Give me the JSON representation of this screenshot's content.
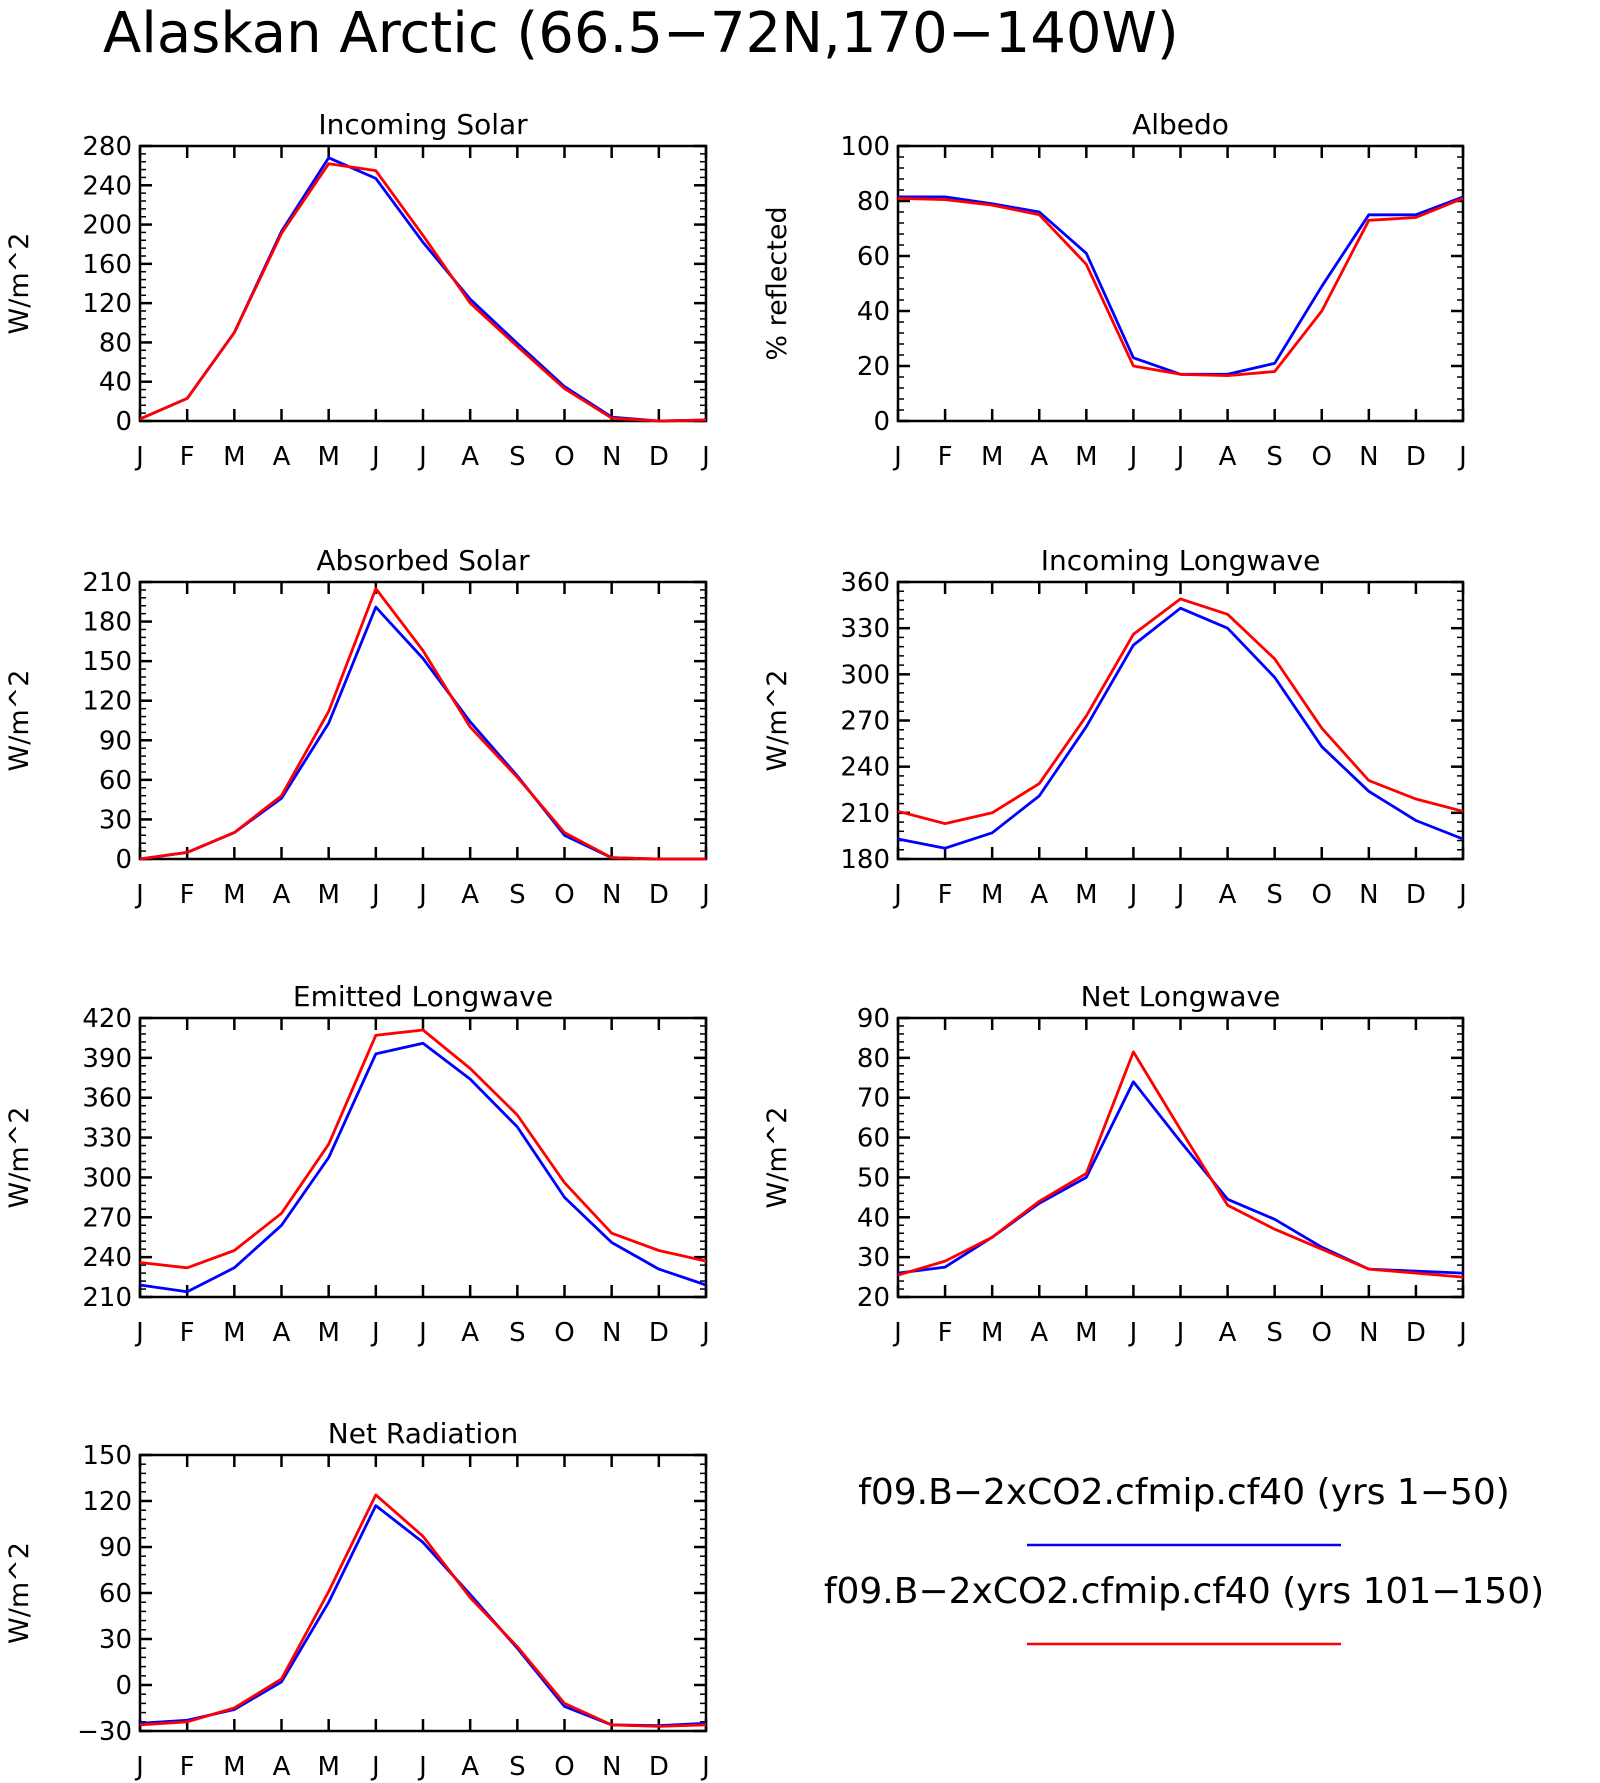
{
  "title": "Alaskan Arctic (66.5-72N,170-140W)",
  "legend": [
    {
      "label": "f09.B-2xCO2.cfmip.cf40 (yrs 1-50)",
      "color": "#0000ff"
    },
    {
      "label": "f09.B-2xCO2.cfmip.cf40 (yrs 101-150)",
      "color": "#ff0000"
    }
  ],
  "chart_data": [
    {
      "type": "line",
      "title": "Incoming Solar",
      "ylabel": "W/m^2",
      "ylim": [
        0,
        280
      ],
      "yticks": [
        0,
        40,
        80,
        120,
        160,
        200,
        240,
        280
      ],
      "categories": [
        "J",
        "F",
        "M",
        "A",
        "M",
        "J",
        "J",
        "A",
        "S",
        "O",
        "N",
        "D",
        "J"
      ],
      "series": [
        {
          "color": "#0000ff",
          "values": [
            2,
            23,
            90,
            193,
            268,
            247,
            182,
            124,
            79,
            35,
            4,
            0,
            1
          ]
        },
        {
          "color": "#ff0000",
          "values": [
            2,
            23,
            90,
            191,
            262,
            255,
            189,
            120,
            76,
            33,
            3,
            0,
            1
          ]
        }
      ]
    },
    {
      "type": "line",
      "title": "Albedo",
      "ylabel": "% reflected",
      "ylim": [
        0,
        100
      ],
      "yticks": [
        0,
        20,
        40,
        60,
        80,
        100
      ],
      "categories": [
        "J",
        "F",
        "M",
        "A",
        "M",
        "J",
        "J",
        "A",
        "S",
        "O",
        "N",
        "D",
        "J"
      ],
      "series": [
        {
          "color": "#0000ff",
          "values": [
            81.5,
            81.5,
            79,
            76,
            61,
            23,
            17,
            17,
            21,
            49,
            75,
            75,
            81.5
          ]
        },
        {
          "color": "#ff0000",
          "values": [
            81,
            80.5,
            78.5,
            75,
            57,
            20,
            17,
            16.5,
            18,
            40,
            73,
            74,
            81
          ]
        }
      ]
    },
    {
      "type": "line",
      "title": "Absorbed Solar",
      "ylabel": "W/m^2",
      "ylim": [
        0,
        210
      ],
      "yticks": [
        0,
        30,
        60,
        90,
        120,
        150,
        180,
        210
      ],
      "categories": [
        "J",
        "F",
        "M",
        "A",
        "M",
        "J",
        "J",
        "A",
        "S",
        "O",
        "N",
        "D",
        "J"
      ],
      "series": [
        {
          "color": "#0000ff",
          "values": [
            0,
            5,
            20,
            46,
            103,
            191,
            152,
            104,
            63,
            18,
            1,
            0,
            0
          ]
        },
        {
          "color": "#ff0000",
          "values": [
            0,
            5,
            20,
            48,
            112,
            205,
            158,
            100,
            62,
            20,
            1,
            0,
            0
          ]
        }
      ]
    },
    {
      "type": "line",
      "title": "Incoming Longwave",
      "ylabel": "W/m^2",
      "ylim": [
        180,
        360
      ],
      "yticks": [
        180,
        210,
        240,
        270,
        300,
        330,
        360
      ],
      "categories": [
        "J",
        "F",
        "M",
        "A",
        "M",
        "J",
        "J",
        "A",
        "S",
        "O",
        "N",
        "D",
        "J"
      ],
      "series": [
        {
          "color": "#0000ff",
          "values": [
            193,
            187,
            197,
            221,
            266,
            319,
            343,
            330,
            298,
            253,
            224,
            205,
            193
          ]
        },
        {
          "color": "#ff0000",
          "values": [
            211,
            203,
            210,
            229,
            273,
            326,
            349,
            339,
            310,
            265,
            231,
            219,
            211
          ]
        }
      ]
    },
    {
      "type": "line",
      "title": "Emitted Longwave",
      "ylabel": "W/m^2",
      "ylim": [
        210,
        420
      ],
      "yticks": [
        210,
        240,
        270,
        300,
        330,
        360,
        390,
        420
      ],
      "categories": [
        "J",
        "F",
        "M",
        "A",
        "M",
        "J",
        "J",
        "A",
        "S",
        "O",
        "N",
        "D",
        "J"
      ],
      "series": [
        {
          "color": "#0000ff",
          "values": [
            219,
            214,
            232,
            264,
            315,
            393,
            401,
            374,
            338,
            285,
            251,
            231,
            219
          ]
        },
        {
          "color": "#ff0000",
          "values": [
            236,
            232,
            245,
            273,
            325,
            407,
            411,
            382,
            347,
            296,
            258,
            245,
            237
          ]
        }
      ]
    },
    {
      "type": "line",
      "title": "Net Longwave",
      "ylabel": "W/m^2",
      "ylim": [
        20,
        90
      ],
      "yticks": [
        20,
        30,
        40,
        50,
        60,
        70,
        80,
        90
      ],
      "categories": [
        "J",
        "F",
        "M",
        "A",
        "M",
        "J",
        "J",
        "A",
        "S",
        "O",
        "N",
        "D",
        "J"
      ],
      "series": [
        {
          "color": "#0000ff",
          "values": [
            26,
            27.5,
            35,
            43.5,
            50,
            74,
            59,
            44.5,
            39.5,
            32.5,
            27,
            26.5,
            26
          ]
        },
        {
          "color": "#ff0000",
          "values": [
            25.5,
            29,
            35,
            44,
            51,
            81.5,
            62,
            43,
            37,
            32,
            27,
            26,
            25
          ]
        }
      ]
    },
    {
      "type": "line",
      "title": "Net Radiation",
      "ylabel": "W/m^2",
      "ylim": [
        -30,
        150
      ],
      "yticks": [
        -30,
        0,
        30,
        60,
        90,
        120,
        150
      ],
      "categories": [
        "J",
        "F",
        "M",
        "A",
        "M",
        "J",
        "J",
        "A",
        "S",
        "O",
        "N",
        "D",
        "J"
      ],
      "series": [
        {
          "color": "#0000ff",
          "values": [
            -25,
            -23,
            -16,
            2,
            54,
            117,
            93,
            59,
            24,
            -14,
            -26,
            -26.5,
            -25
          ]
        },
        {
          "color": "#ff0000",
          "values": [
            -26,
            -24,
            -15,
            4,
            61,
            124,
            97,
            57,
            25,
            -12,
            -26,
            -27,
            -26
          ]
        }
      ]
    }
  ]
}
